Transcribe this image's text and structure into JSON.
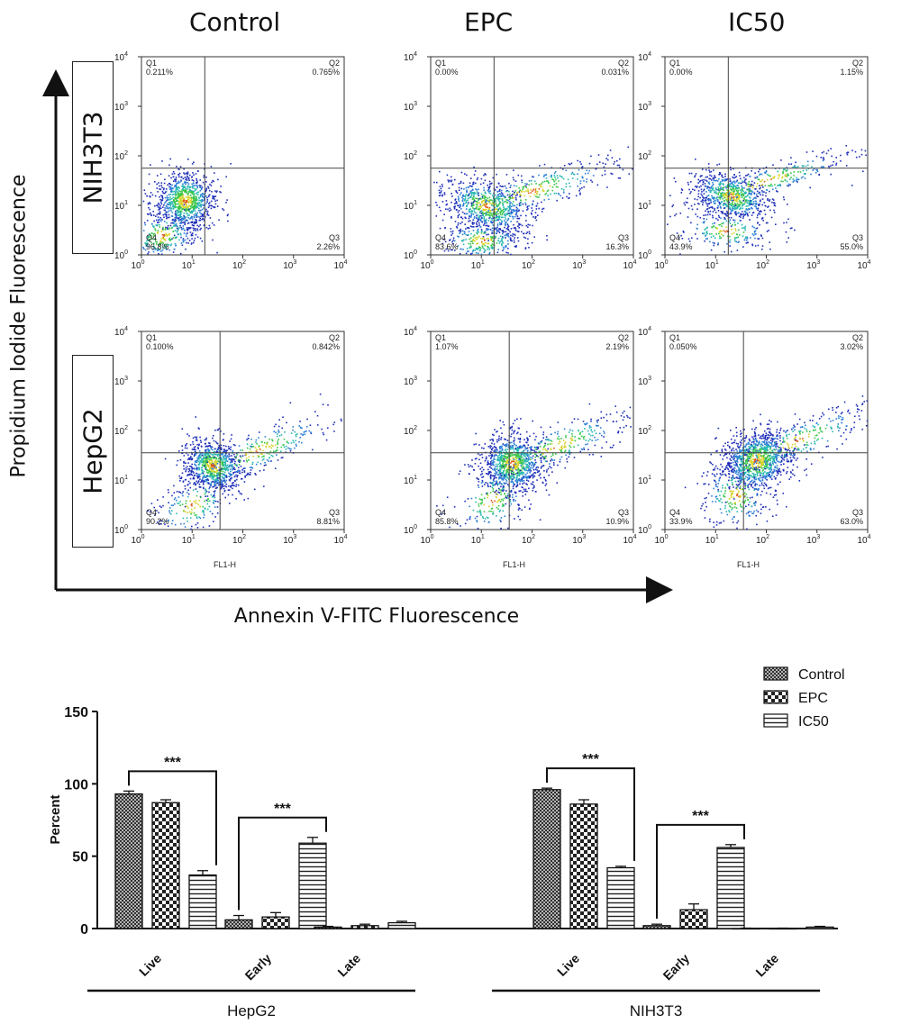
{
  "column_headers": [
    "Control",
    "EPC",
    "IC50"
  ],
  "row_labels": [
    "NIH3T3",
    "HepG2"
  ],
  "axis_titles": {
    "y": "Propidium Iodide Fluorescence",
    "x": "Annexin V-FITC Fluorescence"
  },
  "flow_panel_text": {
    "x_tick_labels": [
      "10",
      "10",
      "10",
      "10",
      "10"
    ],
    "x_tick_exponents": [
      "0",
      "1",
      "2",
      "3",
      "4"
    ],
    "y_tick_labels": [
      "10",
      "10",
      "10",
      "10",
      "10"
    ],
    "y_tick_exponents": [
      "0",
      "1",
      "2",
      "3",
      "4"
    ],
    "x_axis_label": "FL1-H",
    "quadrant_names": [
      "Q1",
      "Q2",
      "Q3",
      "Q4"
    ]
  },
  "flow_panels": [
    {
      "cell": "NIH3T3",
      "treatment": "Control",
      "quadrants": {
        "Q1": "0.211%",
        "Q2": "0.765%",
        "Q3": "2.26%",
        "Q4": "96.8%"
      }
    },
    {
      "cell": "NIH3T3",
      "treatment": "EPC",
      "quadrants": {
        "Q1": "0.00%",
        "Q2": "0.031%",
        "Q3": "16.3%",
        "Q4": "83.6%"
      }
    },
    {
      "cell": "NIH3T3",
      "treatment": "IC50",
      "quadrants": {
        "Q1": "0.00%",
        "Q2": "1.15%",
        "Q3": "55.0%",
        "Q4": "43.9%"
      }
    },
    {
      "cell": "HepG2",
      "treatment": "Control",
      "quadrants": {
        "Q1": "0.100%",
        "Q2": "0.842%",
        "Q3": "8.81%",
        "Q4": "90.2%"
      }
    },
    {
      "cell": "HepG2",
      "treatment": "EPC",
      "quadrants": {
        "Q1": "1.07%",
        "Q2": "2.19%",
        "Q3": "10.9%",
        "Q4": "85.8%"
      }
    },
    {
      "cell": "HepG2",
      "treatment": "IC50",
      "quadrants": {
        "Q1": "0.050%",
        "Q2": "3.02%",
        "Q3": "63.0%",
        "Q4": "33.9%"
      }
    }
  ],
  "chart_data": {
    "type": "bar",
    "ylabel": "Percent",
    "ylim": [
      0,
      150
    ],
    "y_ticks": [
      0,
      50,
      100,
      150
    ],
    "groups": [
      "HepG2",
      "NIH3T3"
    ],
    "categories": [
      "Live",
      "Early",
      "Late"
    ],
    "legend": {
      "position": "top-right",
      "entries": [
        "Control",
        "EPC",
        "IC50"
      ]
    },
    "series": [
      {
        "name": "Control",
        "pattern": "crosshatch-dense",
        "values": {
          "HepG2": [
            93,
            6,
            1
          ],
          "NIH3T3": [
            96,
            2,
            0
          ]
        },
        "errors": {
          "HepG2": [
            2,
            3,
            0.5
          ],
          "NIH3T3": [
            1,
            1,
            0.3
          ]
        }
      },
      {
        "name": "EPC",
        "pattern": "checker",
        "values": {
          "HepG2": [
            87,
            8,
            2
          ],
          "NIH3T3": [
            86,
            13,
            0
          ]
        },
        "errors": {
          "HepG2": [
            2,
            3,
            1
          ],
          "NIH3T3": [
            3,
            4,
            0.3
          ]
        }
      },
      {
        "name": "IC50",
        "pattern": "horizontal-lines",
        "values": {
          "HepG2": [
            37,
            59,
            4
          ],
          "NIH3T3": [
            42,
            56,
            1
          ]
        },
        "errors": {
          "HepG2": [
            3,
            4,
            1
          ],
          "NIH3T3": [
            1,
            2,
            0.5
          ]
        }
      }
    ],
    "significance": [
      {
        "group": "HepG2",
        "category": "Live",
        "label": "***"
      },
      {
        "group": "HepG2",
        "category": "Early",
        "label": "***"
      },
      {
        "group": "NIH3T3",
        "category": "Live",
        "label": "***"
      },
      {
        "group": "NIH3T3",
        "category": "Early",
        "label": "***"
      }
    ]
  }
}
